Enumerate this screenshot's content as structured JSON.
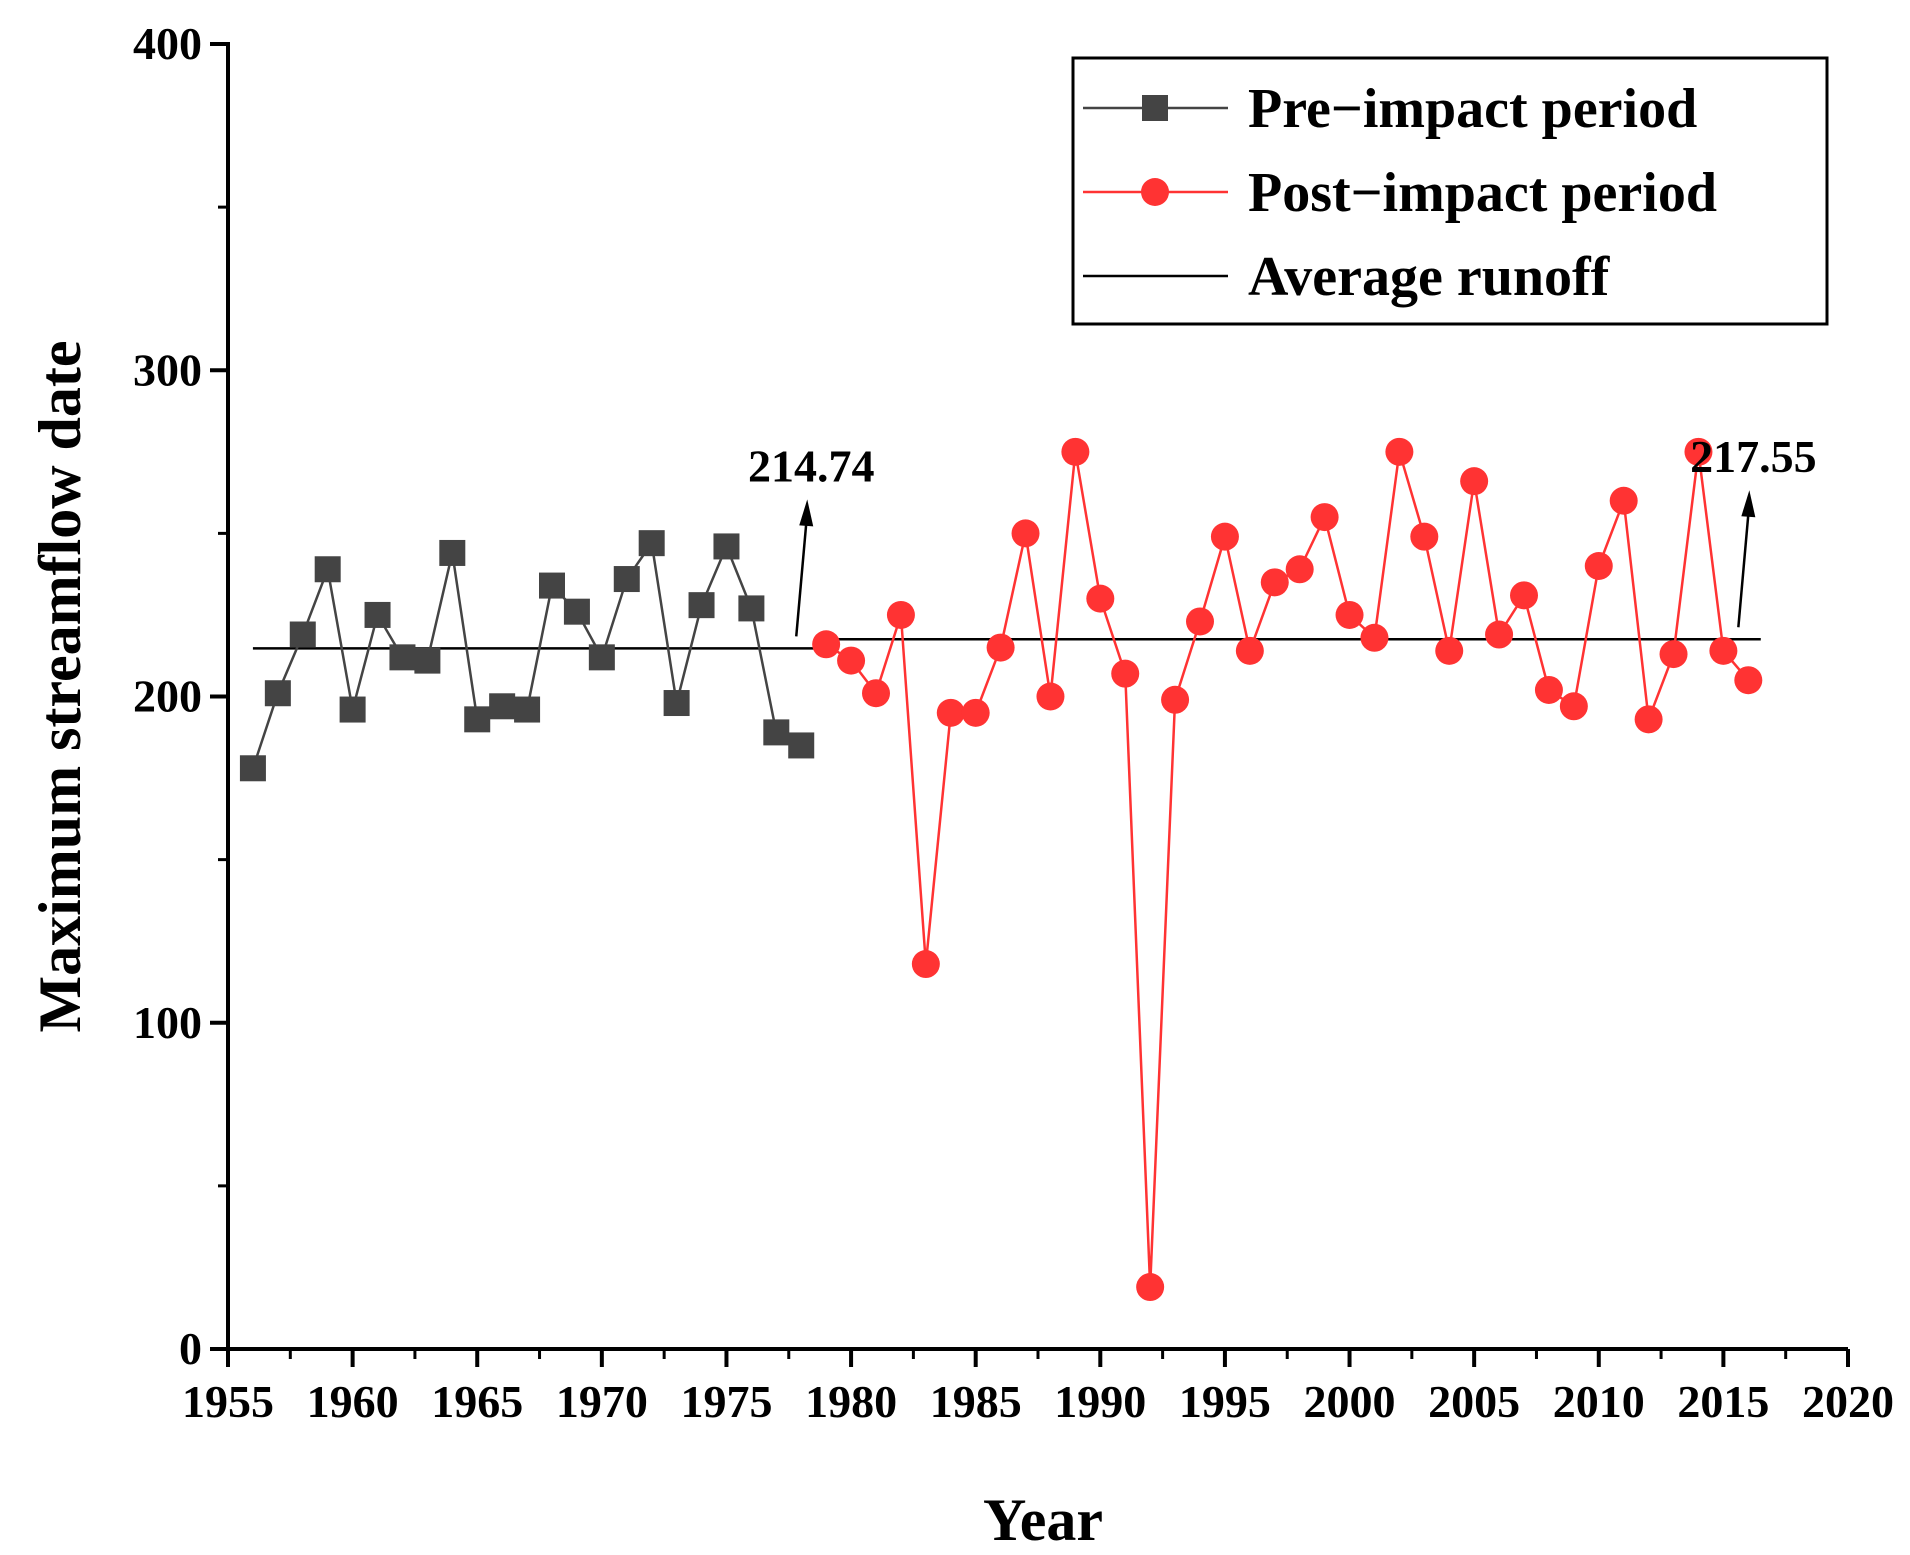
{
  "chart_data": {
    "type": "line",
    "xlabel": "Year",
    "ylabel": "Maximum streamflow date",
    "xlim": [
      1955,
      2020
    ],
    "ylim": [
      0,
      400
    ],
    "x_ticks": [
      "1955",
      "1960",
      "1965",
      "1970",
      "1975",
      "1980",
      "1985",
      "1990",
      "1995",
      "2000",
      "2005",
      "2010",
      "2015",
      "2020"
    ],
    "y_ticks": [
      "0",
      "100",
      "200",
      "300",
      "400"
    ],
    "series": [
      {
        "name": "Pre−impact period",
        "color": "#444444",
        "marker": "square",
        "x": [
          1956,
          1957,
          1958,
          1959,
          1960,
          1961,
          1962,
          1963,
          1964,
          1965,
          1966,
          1967,
          1968,
          1969,
          1970,
          1971,
          1972,
          1973,
          1974,
          1975,
          1976,
          1977,
          1978
        ],
        "values": [
          178,
          201,
          219,
          239,
          196,
          225,
          212,
          211,
          244,
          193,
          197,
          196,
          234,
          226,
          212,
          236,
          247,
          198,
          228,
          246,
          227,
          189,
          185
        ]
      },
      {
        "name": "Post−impact period",
        "color": "#ff3333",
        "marker": "circle",
        "x": [
          1979,
          1980,
          1981,
          1982,
          1983,
          1984,
          1985,
          1986,
          1987,
          1988,
          1989,
          1990,
          1991,
          1992,
          1993,
          1994,
          1995,
          1996,
          1997,
          1998,
          1999,
          2000,
          2001,
          2002,
          2003,
          2004,
          2005,
          2006,
          2007,
          2008,
          2009,
          2010,
          2011,
          2012,
          2013,
          2014,
          2015,
          2016
        ],
        "values": [
          216,
          211,
          201,
          225,
          118,
          195,
          195,
          215,
          250,
          200,
          275,
          230,
          207,
          19,
          199,
          223,
          249,
          214,
          235,
          239,
          255,
          225,
          218,
          275,
          249,
          214,
          266,
          219,
          231,
          202,
          197,
          240,
          260,
          193,
          213,
          275,
          214,
          205
        ]
      }
    ],
    "averages": [
      {
        "name": "Average runoff",
        "value": 214.74,
        "x_range": [
          1956,
          1978
        ],
        "label": "214.74",
        "arrow_x": 1977.8
      },
      {
        "value": 217.55,
        "x_range": [
          1979,
          2016
        ],
        "label": "217.55",
        "arrow_x": 2015.6
      }
    ],
    "legend": {
      "position": "top-right",
      "entries": [
        "Pre−impact period",
        "Post−impact period",
        "Average runoff"
      ]
    }
  }
}
